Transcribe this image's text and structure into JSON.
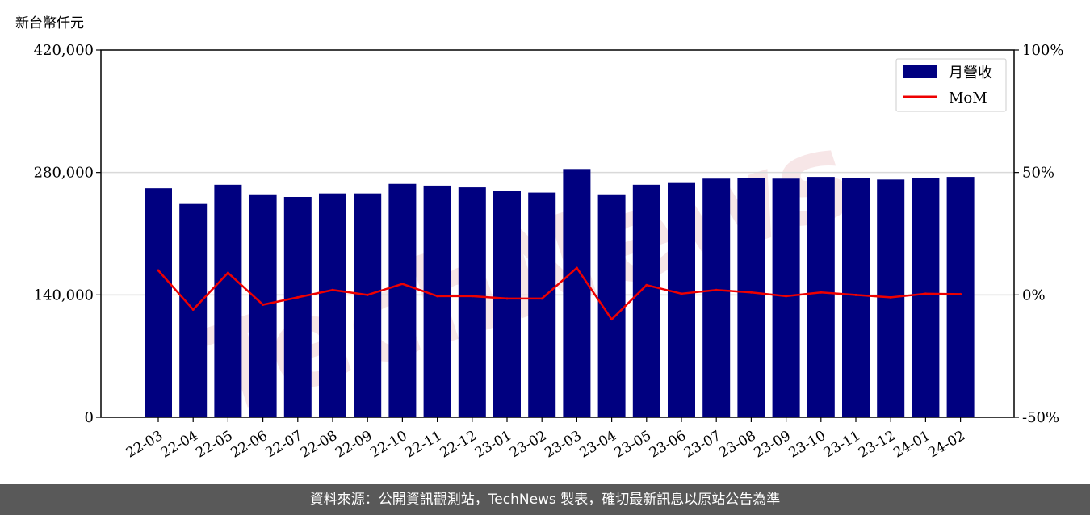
{
  "unit_label": "新台幣仟元",
  "footer_text": "資料來源：公開資訊觀測站，TechNews 製表，確切最新訊息以原站公告為準",
  "watermark": "TechNews",
  "colors": {
    "bar": "#000080",
    "line": "#ee0000",
    "grid": "#d9d9d9",
    "footer_bg": "#595959"
  },
  "chart_data": {
    "type": "bar",
    "categories": [
      "22-03",
      "22-04",
      "22-05",
      "22-06",
      "22-07",
      "22-08",
      "22-09",
      "22-10",
      "22-11",
      "22-12",
      "23-01",
      "23-02",
      "23-03",
      "23-04",
      "23-05",
      "23-06",
      "23-07",
      "23-08",
      "23-09",
      "23-10",
      "23-11",
      "23-12",
      "24-01",
      "24-02"
    ],
    "series": [
      {
        "name": "月營收",
        "type": "bar",
        "axis": "left",
        "values": [
          262000,
          244000,
          266000,
          255000,
          252000,
          256000,
          256000,
          267000,
          265000,
          263000,
          259000,
          257000,
          284000,
          255000,
          266000,
          268000,
          273000,
          274000,
          273000,
          275000,
          274000,
          272000,
          274000,
          275000
        ]
      },
      {
        "name": "MoM",
        "type": "line",
        "axis": "right",
        "values": [
          10,
          -6,
          9,
          -4,
          -1,
          2,
          0,
          4.5,
          -0.5,
          -0.5,
          -1.5,
          -1.5,
          11,
          -10,
          4,
          0.5,
          2,
          1,
          -0.5,
          1,
          0,
          -1,
          0.5,
          0.3
        ]
      }
    ],
    "left_axis": {
      "range": [
        0,
        420000
      ],
      "ticks": [
        "0",
        "140,000",
        "280,000",
        "420,000"
      ]
    },
    "right_axis": {
      "range": [
        -50,
        100
      ],
      "ticks": [
        "-50%",
        "0%",
        "50%",
        "100%"
      ]
    },
    "grid": "horizontal",
    "legend_position": "top-right",
    "legend": [
      "月營收",
      "MoM"
    ]
  }
}
